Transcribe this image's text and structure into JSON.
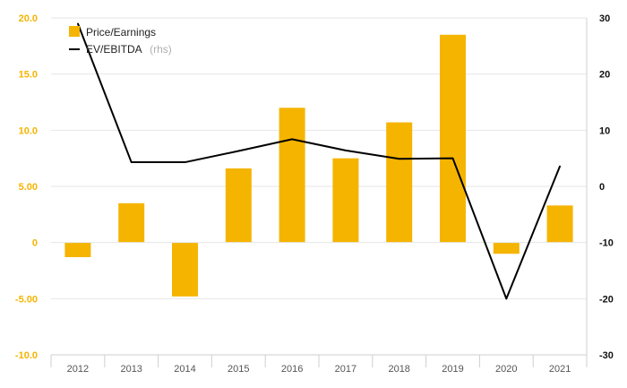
{
  "colors": {
    "bar": "#f5b400",
    "line": "#000000",
    "grid": "#e6e6e6",
    "axis": "#cfcfcf",
    "left_tick": "#f5b400",
    "right_tick": "#111111",
    "legend_suffix": "#b0b0b0"
  },
  "legend": {
    "bar_label": "Price/Earnings",
    "line_label": "EV/EBITDA",
    "line_suffix": "(rhs)",
    "bar_icon": "square-swatch-icon",
    "line_icon": "line-swatch-icon"
  },
  "chart_data": {
    "type": "bar",
    "title": "",
    "xlabel": "",
    "ylabel": "",
    "categories": [
      "2012",
      "2013",
      "2014",
      "2015",
      "2016",
      "2017",
      "2018",
      "2019",
      "2020",
      "2021"
    ],
    "ylim": [
      -10,
      20
    ],
    "yticks": [
      "20.0",
      "15.0",
      "10.0",
      "5.00",
      "0",
      "-5.00",
      "-10.0"
    ],
    "y2lim": [
      -30,
      30
    ],
    "y2ticks": [
      "30",
      "20",
      "10",
      "0",
      "-10",
      "-20",
      "-30"
    ],
    "grid": true,
    "legend_position": "top-left",
    "series": [
      {
        "name": "Price/Earnings",
        "type": "bar",
        "axis": "left",
        "values": [
          -1.3,
          3.5,
          -4.8,
          6.6,
          12.0,
          7.5,
          10.7,
          18.5,
          -1.0,
          3.3
        ]
      },
      {
        "name": "EV/EBITDA (rhs)",
        "type": "line",
        "axis": "right",
        "values": [
          29.0,
          4.3,
          4.3,
          6.3,
          8.4,
          6.4,
          4.9,
          5.0,
          -20.0,
          3.6
        ]
      }
    ]
  }
}
